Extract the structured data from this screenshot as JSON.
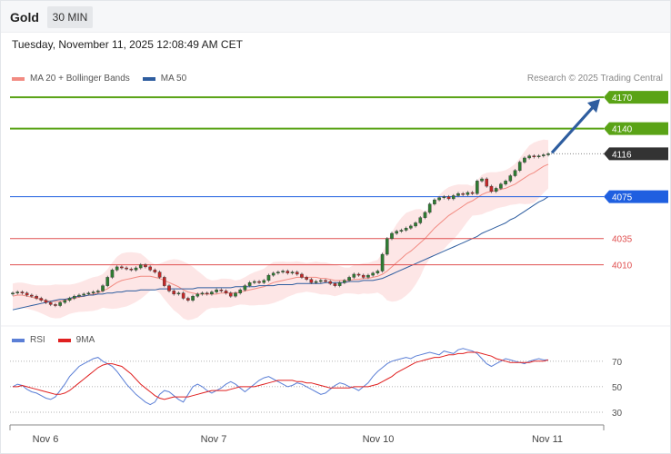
{
  "header": {
    "symbol": "Gold",
    "timeframe": "30 MIN",
    "datetime": "Tuesday, November 11, 2025 12:08:49 AM CET",
    "copyright": "Research © 2025 Trading Central"
  },
  "legend_price": [
    {
      "label": "MA 20 + Bollinger Bands",
      "color": "#f28b82"
    },
    {
      "label": "MA 50",
      "color": "#2e5d9f"
    }
  ],
  "legend_rsi": [
    {
      "label": "RSI",
      "color": "#5b7fd6"
    },
    {
      "label": "9MA",
      "color": "#e02020"
    }
  ],
  "colors": {
    "resistance": "#5aa316",
    "pivot": "#1f5fe0",
    "support": "#e05050",
    "last": "#333333",
    "arrow": "#2e5d9f",
    "candle_up": "#2e7d32",
    "candle_down": "#c62828",
    "band_fill": "#fde2e2"
  },
  "chart_data": {
    "type": "candlestick",
    "price_levels": [
      {
        "value": 4170,
        "label": "4170",
        "kind": "resistance"
      },
      {
        "value": 4140,
        "label": "4140",
        "kind": "resistance"
      },
      {
        "value": 4116,
        "label": "4116",
        "kind": "last"
      },
      {
        "value": 4075,
        "label": "4075",
        "kind": "pivot"
      },
      {
        "value": 4035,
        "label": "4035",
        "kind": "support"
      },
      {
        "value": 4010,
        "label": "4010",
        "kind": "support"
      }
    ],
    "x_labels": [
      "Nov 6",
      "Nov 7",
      "Nov 10",
      "Nov 11"
    ],
    "rsi_levels": [
      70,
      50,
      30
    ],
    "price_ylim": [
      3955,
      4177
    ],
    "rsi_ylim": [
      25,
      82
    ],
    "close": [
      3983,
      3984,
      3983,
      3981,
      3980,
      3978,
      3976,
      3974,
      3972,
      3971,
      3974,
      3976,
      3978,
      3980,
      3981,
      3982,
      3983,
      3984,
      3985,
      3990,
      3998,
      4005,
      4008,
      4007,
      4006,
      4005,
      4007,
      4010,
      4008,
      4005,
      4003,
      3998,
      3990,
      3985,
      3982,
      3983,
      3978,
      3976,
      3980,
      3982,
      3983,
      3982,
      3984,
      3986,
      3985,
      3983,
      3980,
      3983,
      3986,
      3990,
      3993,
      3994,
      3993,
      3995,
      4000,
      4002,
      4003,
      4004,
      4002,
      4003,
      4001,
      3998,
      3996,
      3993,
      3994,
      3995,
      3994,
      3992,
      3990,
      3993,
      3995,
      3998,
      4001,
      4000,
      3998,
      4000,
      4002,
      4004,
      4020,
      4035,
      4040,
      4042,
      4043,
      4045,
      4047,
      4050,
      4055,
      4060,
      4068,
      4072,
      4074,
      4075,
      4073,
      4076,
      4078,
      4077,
      4079,
      4078,
      4090,
      4092,
      4085,
      4080,
      4083,
      4087,
      4090,
      4095,
      4100,
      4108,
      4112,
      4114,
      4113,
      4114,
      4115,
      4116
    ],
    "ma20": [
      3980,
      3981,
      3981,
      3980,
      3979,
      3978,
      3977,
      3976,
      3975,
      3975,
      3975,
      3976,
      3977,
      3978,
      3979,
      3980,
      3981,
      3982,
      3983,
      3985,
      3987,
      3990,
      3993,
      3995,
      3996,
      3997,
      3998,
      3999,
      3999,
      3999,
      3998,
      3997,
      3995,
      3993,
      3991,
      3989,
      3986,
      3984,
      3983,
      3982,
      3982,
      3982,
      3982,
      3982,
      3983,
      3983,
      3983,
      3983,
      3984,
      3985,
      3986,
      3987,
      3988,
      3989,
      3991,
      3993,
      3994,
      3995,
      3996,
      3997,
      3998,
      3998,
      3998,
      3998,
      3998,
      3997,
      3997,
      3996,
      3995,
      3995,
      3995,
      3995,
      3996,
      3996,
      3997,
      3997,
      3998,
      3999,
      4001,
      4004,
      4008,
      4012,
      4016,
      4020,
      4023,
      4027,
      4031,
      4035,
      4040,
      4045,
      4049,
      4053,
      4057,
      4060,
      4063,
      4066,
      4069,
      4071,
      4074,
      4077,
      4079,
      4080,
      4081,
      4082,
      4083,
      4085,
      4087,
      4090,
      4093,
      4096,
      4098,
      4101,
      4104,
      4106
    ],
    "ma50": [
      3967,
      3968,
      3969,
      3970,
      3971,
      3972,
      3973,
      3974,
      3975,
      3976,
      3977,
      3977,
      3978,
      3979,
      3980,
      3980,
      3981,
      3981,
      3982,
      3982,
      3983,
      3983,
      3984,
      3984,
      3985,
      3985,
      3985,
      3986,
      3986,
      3986,
      3986,
      3987,
      3987,
      3987,
      3987,
      3987,
      3987,
      3987,
      3987,
      3988,
      3988,
      3988,
      3988,
      3988,
      3988,
      3988,
      3988,
      3989,
      3989,
      3989,
      3989,
      3989,
      3990,
      3990,
      3990,
      3990,
      3991,
      3991,
      3991,
      3991,
      3992,
      3992,
      3992,
      3992,
      3992,
      3992,
      3993,
      3993,
      3993,
      3993,
      3993,
      3994,
      3994,
      3994,
      3995,
      3995,
      3995,
      3996,
      3997,
      3999,
      4001,
      4003,
      4005,
      4007,
      4009,
      4011,
      4013,
      4015,
      4017,
      4019,
      4021,
      4023,
      4025,
      4027,
      4029,
      4031,
      4033,
      4035,
      4037,
      4040,
      4042,
      4044,
      4046,
      4048,
      4050,
      4053,
      4055,
      4058,
      4061,
      4064,
      4067,
      4070,
      4072,
      4075
    ],
    "rsi": [
      50,
      52,
      51,
      48,
      46,
      45,
      43,
      41,
      40,
      42,
      47,
      52,
      58,
      62,
      66,
      68,
      70,
      72,
      73,
      70,
      68,
      66,
      62,
      57,
      52,
      48,
      44,
      41,
      38,
      36,
      38,
      44,
      47,
      46,
      43,
      40,
      38,
      44,
      50,
      52,
      50,
      47,
      45,
      47,
      49,
      52,
      54,
      52,
      49,
      46,
      49,
      52,
      55,
      57,
      58,
      56,
      54,
      52,
      50,
      51,
      53,
      52,
      50,
      48,
      46,
      44,
      45,
      48,
      51,
      53,
      52,
      50,
      49,
      47,
      50,
      53,
      58,
      62,
      65,
      68,
      70,
      71,
      72,
      73,
      72,
      74,
      75,
      76,
      77,
      76,
      75,
      78,
      77,
      76,
      79,
      80,
      79,
      78,
      76,
      72,
      68,
      66,
      68,
      70,
      72,
      71,
      70,
      69,
      68,
      70,
      71,
      72,
      71,
      71
    ],
    "rsi9": [
      50,
      50,
      51,
      50,
      49,
      48,
      47,
      46,
      45,
      44,
      44,
      45,
      47,
      50,
      53,
      56,
      59,
      62,
      65,
      67,
      68,
      68,
      67,
      66,
      63,
      60,
      56,
      52,
      49,
      46,
      43,
      41,
      40,
      41,
      42,
      42,
      42,
      42,
      43,
      44,
      45,
      46,
      47,
      47,
      47,
      47,
      48,
      49,
      50,
      50,
      50,
      50,
      51,
      52,
      53,
      54,
      55,
      55,
      55,
      55,
      54,
      54,
      53,
      53,
      52,
      51,
      50,
      49,
      49,
      49,
      49,
      49,
      50,
      50,
      50,
      50,
      51,
      52,
      54,
      56,
      58,
      61,
      63,
      65,
      67,
      69,
      70,
      71,
      72,
      73,
      73,
      74,
      75,
      75,
      76,
      76,
      77,
      77,
      77,
      76,
      75,
      74,
      72,
      71,
      70,
      69,
      69,
      69,
      69,
      69,
      70,
      70,
      70,
      71
    ]
  }
}
